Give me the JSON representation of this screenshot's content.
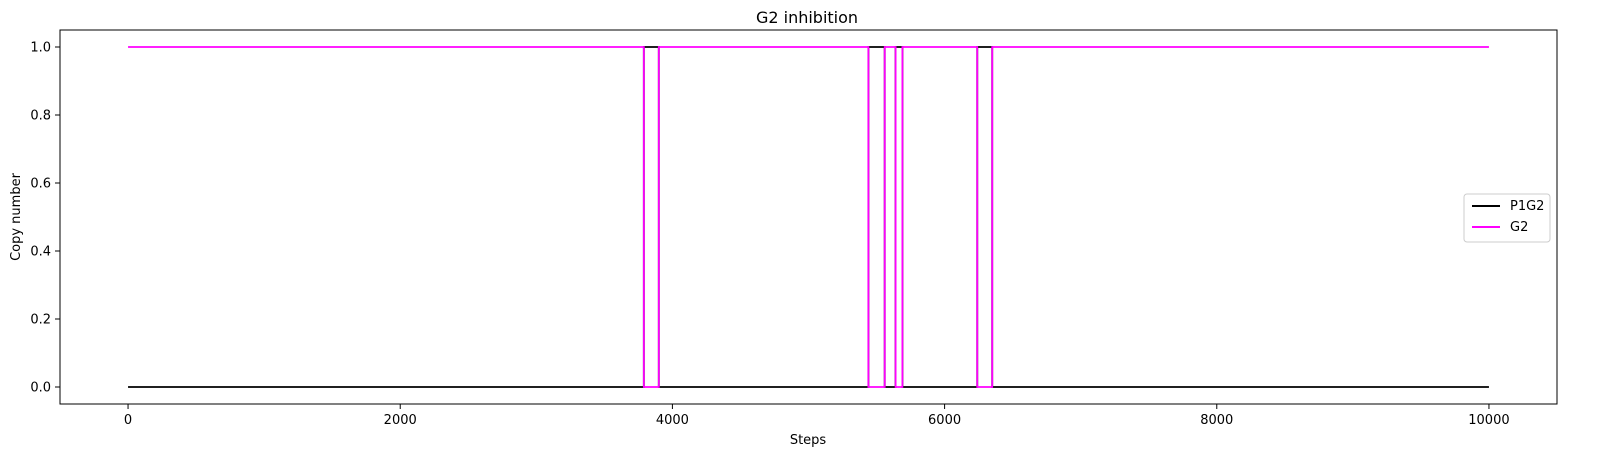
{
  "chart_data": {
    "type": "line",
    "title": "G2 inhibition",
    "xlabel": "Steps",
    "ylabel": "Copy number",
    "xlim": [
      -500,
      10500
    ],
    "ylim": [
      -0.05,
      1.05
    ],
    "xticks": [
      0,
      2000,
      4000,
      6000,
      8000,
      10000
    ],
    "xtick_labels": [
      "0",
      "2000",
      "4000",
      "6000",
      "8000",
      "10000"
    ],
    "yticks": [
      0.0,
      0.2,
      0.4,
      0.6,
      0.8,
      1.0
    ],
    "ytick_labels": [
      "0.0",
      "0.2",
      "0.4",
      "0.6",
      "0.8",
      "1.0"
    ],
    "grid": false,
    "legend_position": "center-right",
    "series": [
      {
        "name": "P1G2",
        "color": "#000000",
        "x": [
          0,
          3790,
          3790,
          3900,
          3900,
          5440,
          5440,
          5560,
          5560,
          5640,
          5640,
          5690,
          5690,
          6240,
          6240,
          6350,
          6350,
          10000
        ],
        "y": [
          0,
          0,
          1,
          1,
          0,
          0,
          1,
          1,
          0,
          0,
          1,
          1,
          0,
          0,
          1,
          1,
          0,
          0
        ]
      },
      {
        "name": "G2",
        "color": "#ff00ff",
        "x": [
          0,
          3790,
          3790,
          3900,
          3900,
          5440,
          5440,
          5560,
          5560,
          5640,
          5640,
          5690,
          5690,
          6240,
          6240,
          6350,
          6350,
          10000
        ],
        "y": [
          1,
          1,
          0,
          0,
          1,
          1,
          0,
          0,
          1,
          1,
          0,
          0,
          1,
          1,
          0,
          0,
          1,
          1
        ]
      }
    ]
  }
}
